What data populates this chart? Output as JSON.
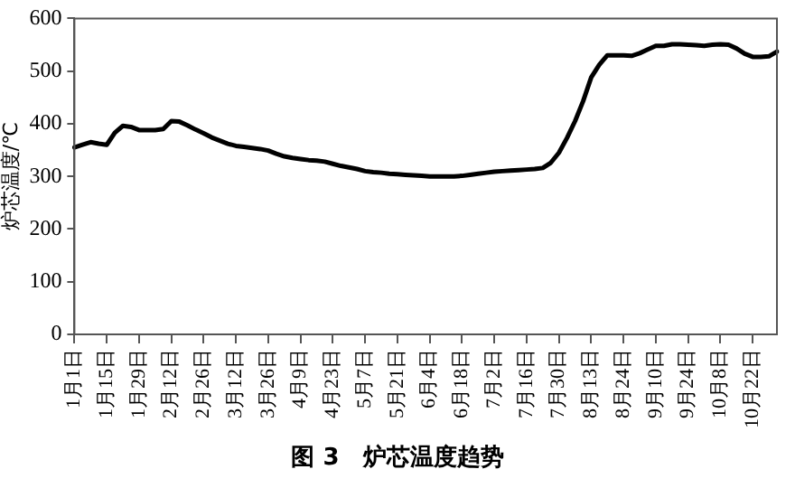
{
  "chart_data": {
    "type": "line",
    "title": "图 3　炉芯温度趋势",
    "ylabel": "炉芯温度/℃",
    "categories": [
      "1月1日",
      null,
      null,
      null,
      "1月15日",
      null,
      null,
      null,
      "1月29日",
      null,
      null,
      null,
      "2月12日",
      null,
      null,
      null,
      "2月26日",
      null,
      null,
      null,
      "3月12日",
      null,
      null,
      null,
      "3月26日",
      null,
      null,
      null,
      "4月9日",
      null,
      null,
      null,
      "4月23日",
      null,
      null,
      null,
      "5月7日",
      null,
      null,
      null,
      "5月21日",
      null,
      null,
      null,
      "6月4日",
      null,
      null,
      null,
      "6月18日",
      null,
      null,
      null,
      "7月2日",
      null,
      null,
      null,
      "7月16日",
      null,
      null,
      null,
      "7月30日",
      null,
      null,
      null,
      "8月13日",
      null,
      null,
      null,
      "8月24日",
      null,
      null,
      null,
      "9月10日",
      null,
      null,
      null,
      "9月24日",
      null,
      null,
      null,
      "10月8日",
      null,
      null,
      null,
      "10月22日",
      null,
      null,
      null
    ],
    "series": [
      {
        "color": "#000000",
        "values": [
          355,
          360,
          365,
          362,
          360,
          383,
          396,
          394,
          388,
          388,
          388,
          390,
          405,
          404,
          397,
          389,
          382,
          374,
          368,
          362,
          358,
          356,
          354,
          352,
          349,
          343,
          338,
          335,
          333,
          331,
          330,
          328,
          324,
          320,
          317,
          314,
          310,
          308,
          307,
          305,
          304,
          303,
          302,
          301,
          300,
          300,
          300,
          300,
          301,
          303,
          305,
          307,
          309,
          310,
          311,
          312,
          313,
          314,
          316,
          326,
          345,
          373,
          405,
          443,
          488,
          512,
          530,
          530,
          530,
          529,
          534,
          541,
          548,
          548,
          551,
          551,
          550,
          549,
          548,
          550,
          551,
          550,
          543,
          533,
          527,
          527,
          528,
          537
        ]
      }
    ],
    "ylim": [
      0,
      600
    ],
    "yticks": [
      0,
      100,
      200,
      300,
      400,
      500,
      600
    ],
    "grid": false,
    "legend": false,
    "marker": "none",
    "line_style": "solid"
  }
}
